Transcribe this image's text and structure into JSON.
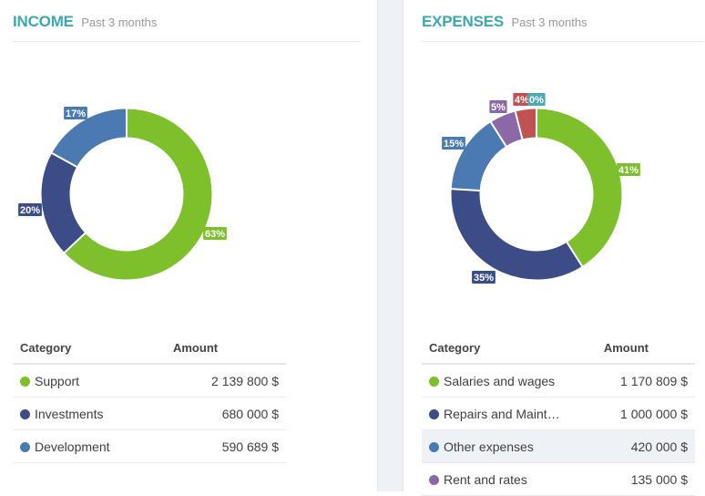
{
  "income": {
    "title": "INCOME",
    "subtitle": "Past 3 months",
    "chart_data": {
      "type": "pie",
      "labels": [
        "Support",
        "Investments",
        "Development"
      ],
      "values": [
        63,
        20,
        17
      ],
      "value_labels": [
        "63%",
        "20%",
        "17%"
      ],
      "colors": [
        "#7dc02c",
        "#3b4c86",
        "#4b7ab3"
      ],
      "unit": "%"
    },
    "table": {
      "headers": [
        "Category",
        "Amount"
      ],
      "rows": [
        {
          "name": "Support",
          "amount": "2 139 800 $",
          "color": "#7dc02c"
        },
        {
          "name": "Investments",
          "amount": "680 000 $",
          "color": "#3b4c86"
        },
        {
          "name": "Development",
          "amount": "590 689 $",
          "color": "#4b7ab3"
        }
      ]
    }
  },
  "expenses": {
    "title": "EXPENSES",
    "subtitle": "Past 3 months",
    "chart_data": {
      "type": "pie",
      "labels": [
        "Salaries and wages",
        "Repairs and Maint…",
        "Other expenses",
        "Rent and rates",
        "",
        ""
      ],
      "values": [
        41,
        35,
        15,
        5,
        4,
        0
      ],
      "value_labels": [
        "41%",
        "35%",
        "15%",
        "5%",
        "4%",
        "0%"
      ],
      "colors": [
        "#7dc02c",
        "#3b4c86",
        "#4b7ab3",
        "#8b69a8",
        "#c05252",
        "#4fa8b5"
      ],
      "unit": "%"
    },
    "table": {
      "headers": [
        "Category",
        "Amount"
      ],
      "rows": [
        {
          "name": "Salaries and wages",
          "amount": "1 170 809 $",
          "color": "#7dc02c"
        },
        {
          "name": "Repairs and Maint…",
          "amount": "1 000 000 $",
          "color": "#3b4c86"
        },
        {
          "name": "Other expenses",
          "amount": "420 000 $",
          "color": "#4b7ab3"
        },
        {
          "name": "Rent and rates",
          "amount": "135 000 $",
          "color": "#8b69a8"
        }
      ]
    }
  }
}
